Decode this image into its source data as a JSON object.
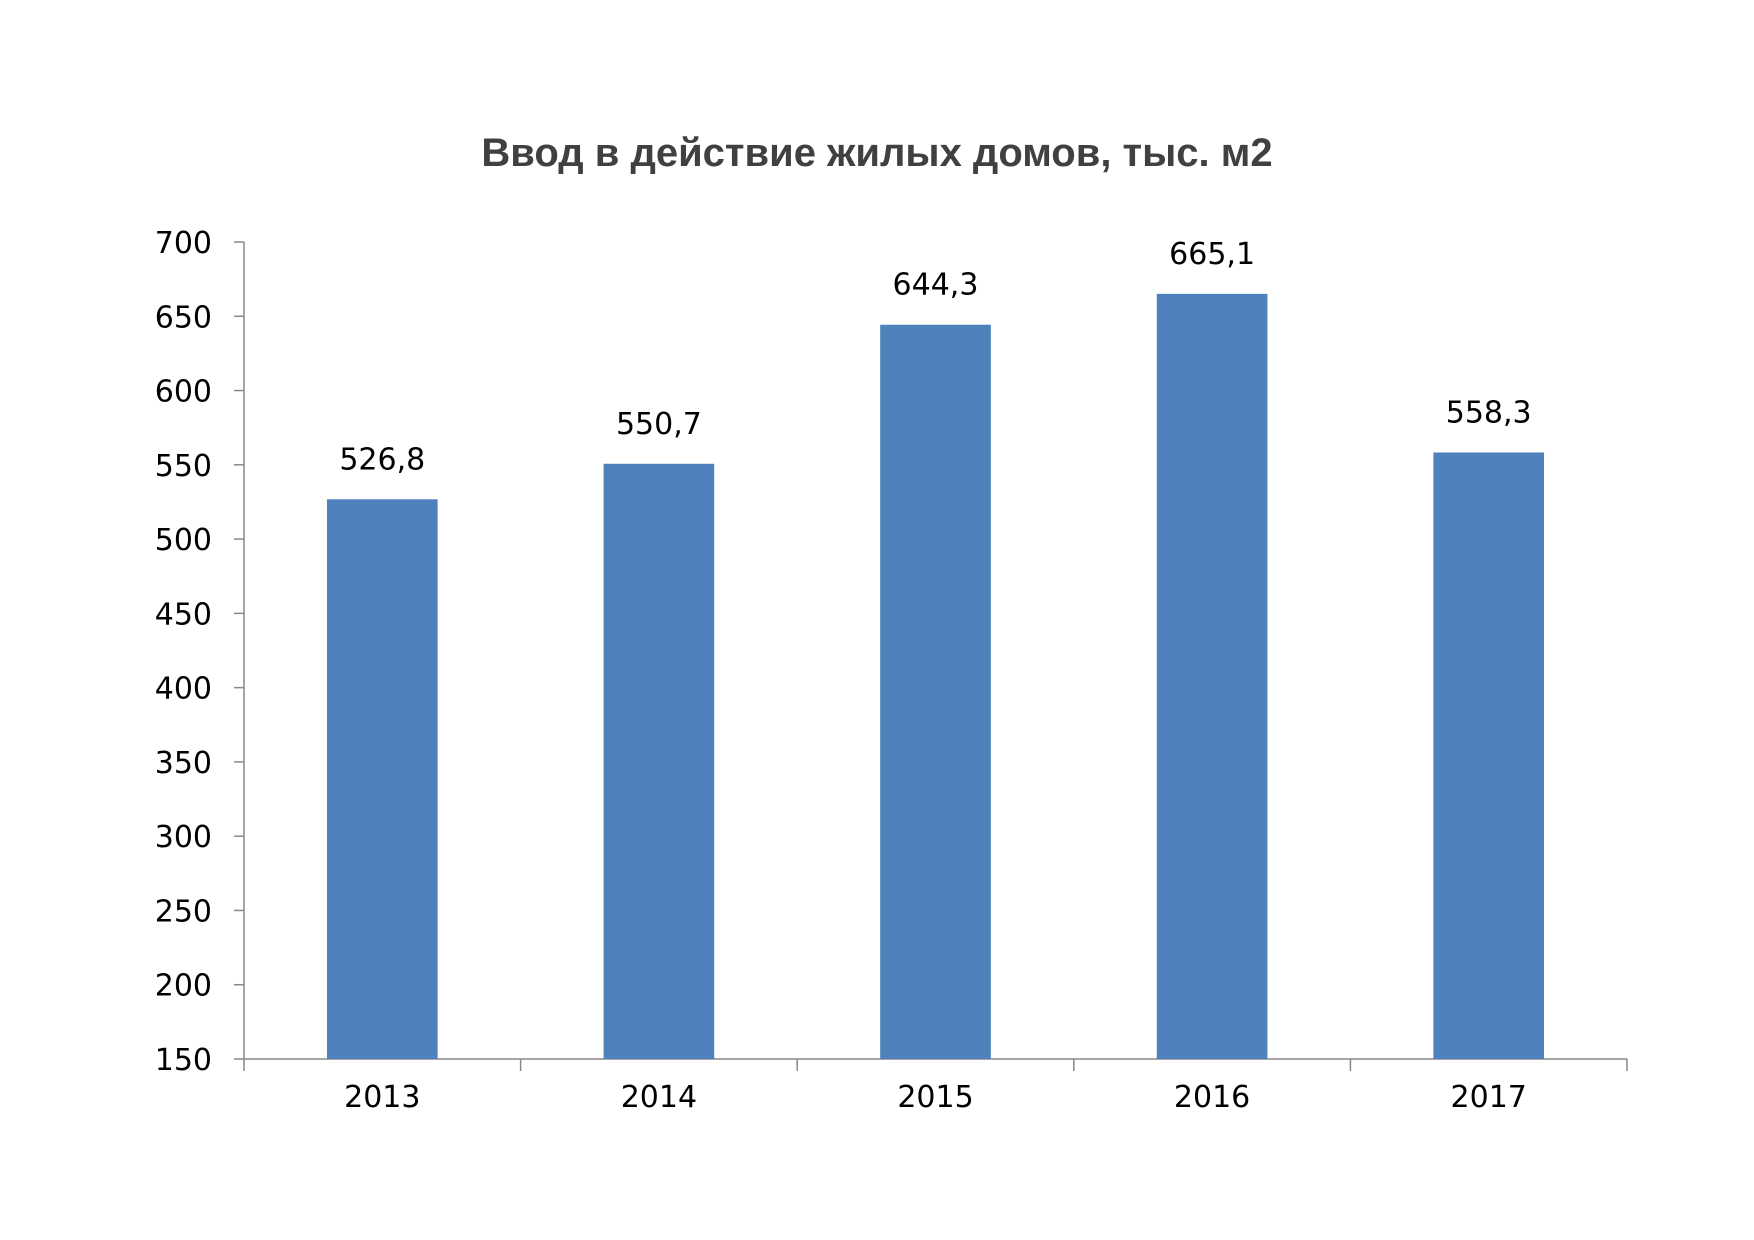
{
  "chart_data": {
    "type": "bar",
    "title": "Ввод в действие жилых домов, тыс. м2",
    "xlabel": "",
    "ylabel": "",
    "categories": [
      "2013",
      "2014",
      "2015",
      "2016",
      "2017"
    ],
    "values": [
      526.8,
      550.7,
      644.3,
      665.1,
      558.3
    ],
    "data_labels": [
      "526,8",
      "550,7",
      "644,3",
      "665,1",
      "558,3"
    ],
    "ylim": [
      150,
      700
    ],
    "y_ticks": [
      150,
      200,
      250,
      300,
      350,
      400,
      450,
      500,
      550,
      600,
      650,
      700
    ],
    "grid": false,
    "legend": "none",
    "bar_color": "#4F81BD"
  }
}
